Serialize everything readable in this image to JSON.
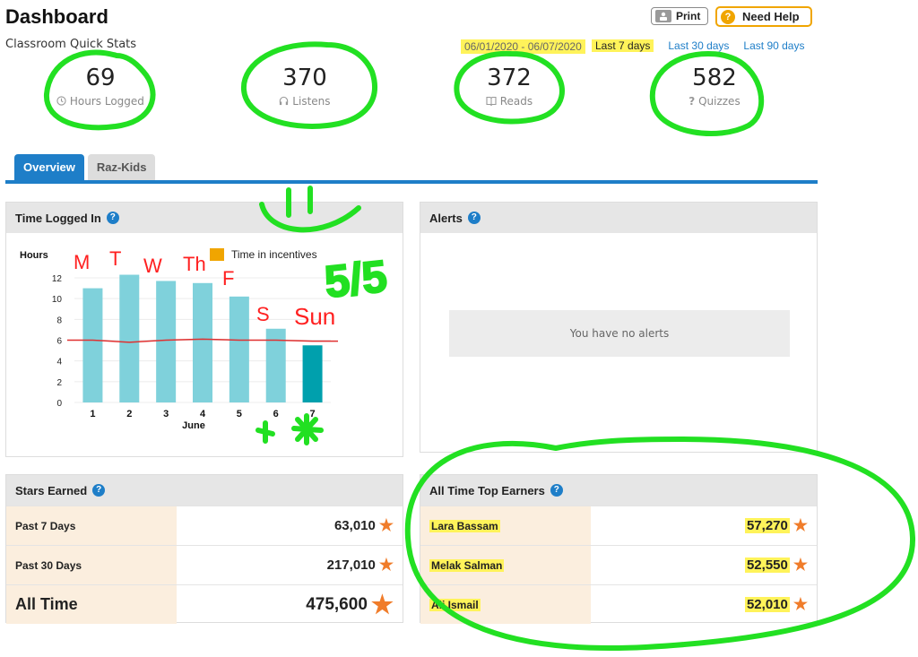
{
  "header": {
    "title": "Dashboard",
    "subtitle": "Classroom Quick Stats",
    "print_label": "Print",
    "help_label": "Need Help"
  },
  "date_range": {
    "text": "06/01/2020 - 06/07/2020",
    "options": [
      "Last 7 days",
      "Last 30 days",
      "Last 90 days"
    ],
    "selected": "Last 7 days"
  },
  "stats": [
    {
      "value": "69",
      "label": "Hours Logged",
      "icon": "clock-icon"
    },
    {
      "value": "370",
      "label": "Listens",
      "icon": "headphones-icon"
    },
    {
      "value": "372",
      "label": "Reads",
      "icon": "book-icon"
    },
    {
      "value": "582",
      "label": "Quizzes",
      "icon": "question-icon"
    }
  ],
  "tabs": [
    "Overview",
    "Raz-Kids"
  ],
  "time_panel": {
    "title": "Time Logged In"
  },
  "alerts_panel": {
    "title": "Alerts",
    "empty_text": "You have no alerts"
  },
  "stars_panel": {
    "title": "Stars Earned",
    "rows": [
      {
        "label": "Past 7 Days",
        "value": "63,010"
      },
      {
        "label": "Past 30 Days",
        "value": "217,010"
      },
      {
        "label": "All Time",
        "value": "475,600"
      }
    ]
  },
  "earners_panel": {
    "title": "All Time Top Earners",
    "rows": [
      {
        "name": "Lara Bassam",
        "value": "57,270"
      },
      {
        "name": "Melak Salman",
        "value": "52,550"
      },
      {
        "name": "Ali Ismail",
        "value": "52,010"
      }
    ]
  },
  "colors": {
    "accent": "#1e7ec8",
    "bar": "#7fd1db",
    "bar_highlight": "#00a0ad",
    "incentive": "#f0a500",
    "trend": "#e03030",
    "highlight": "#fff35a",
    "annotation": "#22e022",
    "annotation_red": "#ff2020"
  },
  "annotations": {
    "score": "5/5",
    "days": [
      "M",
      "T",
      "W",
      "Th",
      "F",
      "S",
      "Sun"
    ]
  },
  "chart_data": {
    "type": "bar",
    "ylabel": "Hours",
    "xlabel": "June",
    "categories": [
      "1",
      "2",
      "3",
      "4",
      "5",
      "6",
      "7"
    ],
    "values": [
      11.0,
      12.3,
      11.7,
      11.5,
      10.2,
      7.1,
      5.5
    ],
    "highlight_index": 6,
    "ylim": [
      0,
      12
    ],
    "yticks": [
      0,
      2,
      4,
      6,
      8,
      10,
      12
    ],
    "legend": "Time in incentives",
    "trend_line": [
      6.0,
      5.8,
      6.0,
      6.1,
      6.0,
      6.0,
      5.9
    ]
  }
}
